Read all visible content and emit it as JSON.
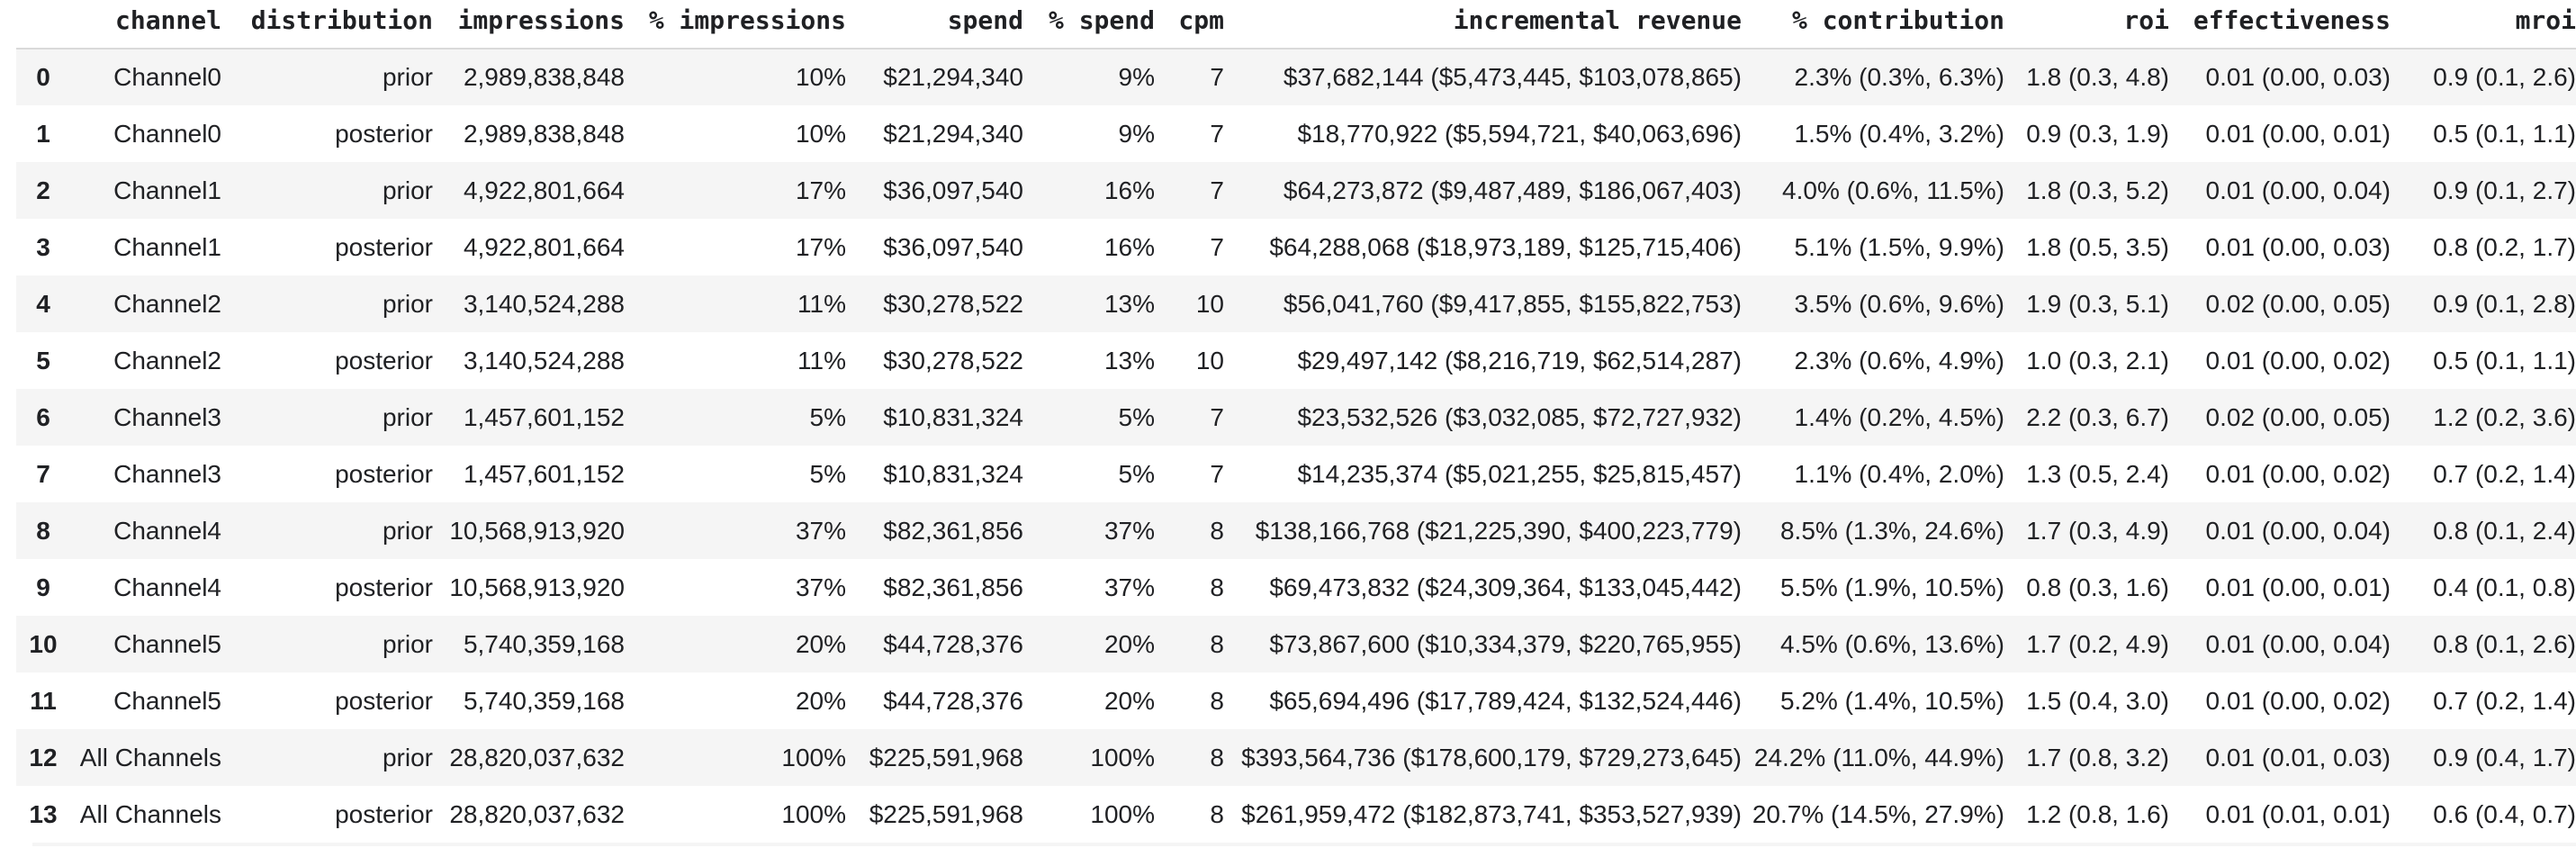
{
  "colors": {
    "bg": "#ffffff",
    "text": "#202124",
    "stripe": "#f5f5f5",
    "divider": "#d9d9d9"
  },
  "table": {
    "columns": [
      {
        "key": "index",
        "label": ""
      },
      {
        "key": "channel",
        "label": "channel"
      },
      {
        "key": "distribution",
        "label": "distribution"
      },
      {
        "key": "impressions",
        "label": "impressions"
      },
      {
        "key": "pct_impressions",
        "label": "% impressions"
      },
      {
        "key": "spend",
        "label": "spend"
      },
      {
        "key": "pct_spend",
        "label": "% spend"
      },
      {
        "key": "cpm",
        "label": "cpm"
      },
      {
        "key": "incremental_revenue",
        "label": "incremental revenue"
      },
      {
        "key": "pct_contribution",
        "label": "% contribution"
      },
      {
        "key": "roi",
        "label": "roi"
      },
      {
        "key": "effectiveness",
        "label": "effectiveness"
      },
      {
        "key": "mroi",
        "label": "mroi"
      }
    ],
    "rows": [
      [
        "0",
        "Channel0",
        "prior",
        "2,989,838,848",
        "10%",
        "$21,294,340",
        "9%",
        "7",
        "$37,682,144 ($5,473,445, $103,078,865)",
        "2.3% (0.3%, 6.3%)",
        "1.8 (0.3, 4.8)",
        "0.01 (0.00, 0.03)",
        "0.9 (0.1, 2.6)"
      ],
      [
        "1",
        "Channel0",
        "posterior",
        "2,989,838,848",
        "10%",
        "$21,294,340",
        "9%",
        "7",
        "$18,770,922 ($5,594,721, $40,063,696)",
        "1.5% (0.4%, 3.2%)",
        "0.9 (0.3, 1.9)",
        "0.01 (0.00, 0.01)",
        "0.5 (0.1, 1.1)"
      ],
      [
        "2",
        "Channel1",
        "prior",
        "4,922,801,664",
        "17%",
        "$36,097,540",
        "16%",
        "7",
        "$64,273,872 ($9,487,489, $186,067,403)",
        "4.0% (0.6%, 11.5%)",
        "1.8 (0.3, 5.2)",
        "0.01 (0.00, 0.04)",
        "0.9 (0.1, 2.7)"
      ],
      [
        "3",
        "Channel1",
        "posterior",
        "4,922,801,664",
        "17%",
        "$36,097,540",
        "16%",
        "7",
        "$64,288,068 ($18,973,189, $125,715,406)",
        "5.1% (1.5%, 9.9%)",
        "1.8 (0.5, 3.5)",
        "0.01 (0.00, 0.03)",
        "0.8 (0.2, 1.7)"
      ],
      [
        "4",
        "Channel2",
        "prior",
        "3,140,524,288",
        "11%",
        "$30,278,522",
        "13%",
        "10",
        "$56,041,760 ($9,417,855, $155,822,753)",
        "3.5% (0.6%, 9.6%)",
        "1.9 (0.3, 5.1)",
        "0.02 (0.00, 0.05)",
        "0.9 (0.1, 2.8)"
      ],
      [
        "5",
        "Channel2",
        "posterior",
        "3,140,524,288",
        "11%",
        "$30,278,522",
        "13%",
        "10",
        "$29,497,142 ($8,216,719, $62,514,287)",
        "2.3% (0.6%, 4.9%)",
        "1.0 (0.3, 2.1)",
        "0.01 (0.00, 0.02)",
        "0.5 (0.1, 1.1)"
      ],
      [
        "6",
        "Channel3",
        "prior",
        "1,457,601,152",
        "5%",
        "$10,831,324",
        "5%",
        "7",
        "$23,532,526 ($3,032,085, $72,727,932)",
        "1.4% (0.2%, 4.5%)",
        "2.2 (0.3, 6.7)",
        "0.02 (0.00, 0.05)",
        "1.2 (0.2, 3.6)"
      ],
      [
        "7",
        "Channel3",
        "posterior",
        "1,457,601,152",
        "5%",
        "$10,831,324",
        "5%",
        "7",
        "$14,235,374 ($5,021,255, $25,815,457)",
        "1.1% (0.4%, 2.0%)",
        "1.3 (0.5, 2.4)",
        "0.01 (0.00, 0.02)",
        "0.7 (0.2, 1.4)"
      ],
      [
        "8",
        "Channel4",
        "prior",
        "10,568,913,920",
        "37%",
        "$82,361,856",
        "37%",
        "8",
        "$138,166,768 ($21,225,390, $400,223,779)",
        "8.5% (1.3%, 24.6%)",
        "1.7 (0.3, 4.9)",
        "0.01 (0.00, 0.04)",
        "0.8 (0.1, 2.4)"
      ],
      [
        "9",
        "Channel4",
        "posterior",
        "10,568,913,920",
        "37%",
        "$82,361,856",
        "37%",
        "8",
        "$69,473,832 ($24,309,364, $133,045,442)",
        "5.5% (1.9%, 10.5%)",
        "0.8 (0.3, 1.6)",
        "0.01 (0.00, 0.01)",
        "0.4 (0.1, 0.8)"
      ],
      [
        "10",
        "Channel5",
        "prior",
        "5,740,359,168",
        "20%",
        "$44,728,376",
        "20%",
        "8",
        "$73,867,600 ($10,334,379, $220,765,955)",
        "4.5% (0.6%, 13.6%)",
        "1.7 (0.2, 4.9)",
        "0.01 (0.00, 0.04)",
        "0.8 (0.1, 2.6)"
      ],
      [
        "11",
        "Channel5",
        "posterior",
        "5,740,359,168",
        "20%",
        "$44,728,376",
        "20%",
        "8",
        "$65,694,496 ($17,789,424, $132,524,446)",
        "5.2% (1.4%, 10.5%)",
        "1.5 (0.4, 3.0)",
        "0.01 (0.00, 0.02)",
        "0.7 (0.2, 1.4)"
      ],
      [
        "12",
        "All Channels",
        "prior",
        "28,820,037,632",
        "100%",
        "$225,591,968",
        "100%",
        "8",
        "$393,564,736 ($178,600,179, $729,273,645)",
        "24.2% (11.0%, 44.9%)",
        "1.7 (0.8, 3.2)",
        "0.01 (0.01, 0.03)",
        "0.9 (0.4, 1.7)"
      ],
      [
        "13",
        "All Channels",
        "posterior",
        "28,820,037,632",
        "100%",
        "$225,591,968",
        "100%",
        "8",
        "$261,959,472 ($182,873,741, $353,527,939)",
        "20.7% (14.5%, 27.9%)",
        "1.2 (0.8, 1.6)",
        "0.01 (0.01, 0.01)",
        "0.6 (0.4, 0.7)"
      ]
    ]
  }
}
